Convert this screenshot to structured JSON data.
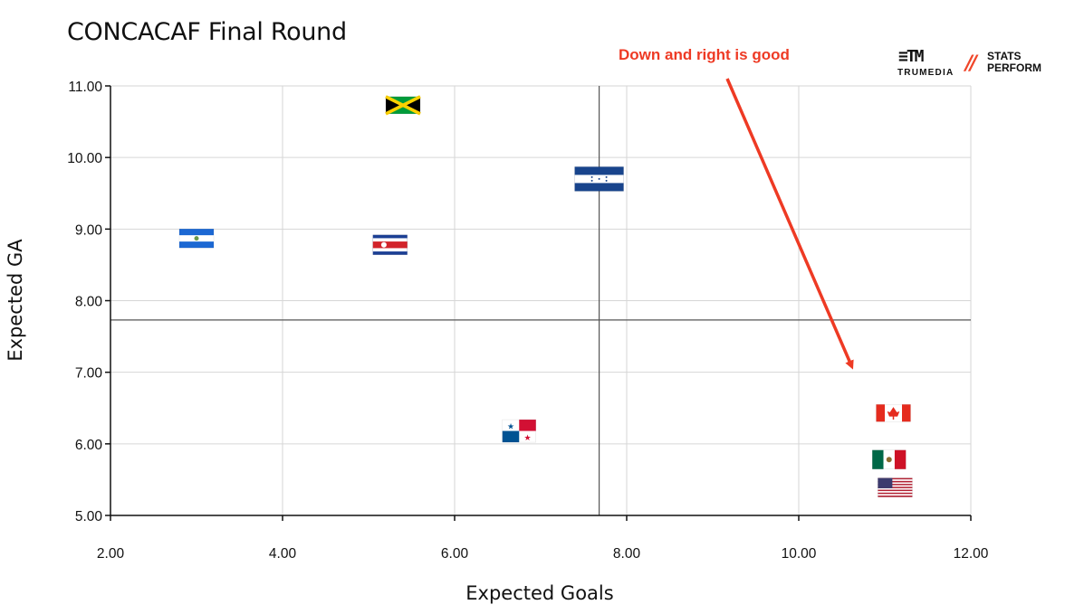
{
  "title": "CONCACAF Final Round",
  "annotation": "Down and right is good",
  "logos": {
    "trumedia": {
      "mark": "≡TM",
      "text": "TRUMEDIA"
    },
    "stats_perform": {
      "mark": "//",
      "line1": "STATS",
      "line2": "PERFORM"
    }
  },
  "colors": {
    "annotation": "#ee3a24",
    "grid": "#d6d6d6",
    "axis": "#111111",
    "reference_line": "#555555"
  },
  "chart_data": {
    "type": "scatter",
    "title": "CONCACAF Final Round",
    "xlabel": "Expected Goals",
    "ylabel": "Expected GA",
    "xlim": [
      2,
      12
    ],
    "ylim": [
      5,
      11
    ],
    "xticks": [
      "2.00",
      "4.00",
      "6.00",
      "8.00",
      "10.00",
      "12.00"
    ],
    "yticks": [
      "5.00",
      "6.00",
      "7.00",
      "8.00",
      "9.00",
      "10.00",
      "11.00"
    ],
    "grid": true,
    "reference_lines": {
      "x": 7.68,
      "y": 7.73
    },
    "markers": "country flags",
    "points": [
      {
        "x": 5.4,
        "y": 10.73,
        "icon": "jamaica-flag-icon"
      },
      {
        "x": 7.68,
        "y": 9.7,
        "icon": "honduras-flag-icon"
      },
      {
        "x": 3.0,
        "y": 8.87,
        "icon": "el-salvador-flag-icon"
      },
      {
        "x": 5.25,
        "y": 8.78,
        "icon": "costa-rica-flag-icon"
      },
      {
        "x": 6.75,
        "y": 6.18,
        "icon": "panama-flag-icon"
      },
      {
        "x": 11.1,
        "y": 6.43,
        "icon": "canada-flag-icon"
      },
      {
        "x": 11.05,
        "y": 5.78,
        "icon": "mexico-flag-icon"
      },
      {
        "x": 11.12,
        "y": 5.39,
        "icon": "usa-flag-icon"
      }
    ]
  }
}
